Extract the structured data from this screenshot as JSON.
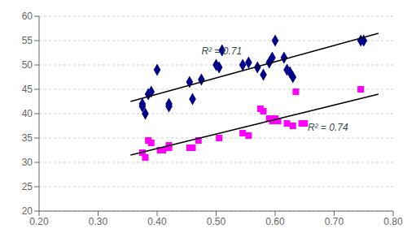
{
  "chart_data": {
    "type": "scatter",
    "xlim": [
      0.2,
      0.8
    ],
    "ylim": [
      20,
      60
    ],
    "xticks": [
      {
        "value": 0.2,
        "label": "0.20"
      },
      {
        "value": 0.3,
        "label": "0.30"
      },
      {
        "value": 0.4,
        "label": "0.40"
      },
      {
        "value": 0.5,
        "label": "0.50"
      },
      {
        "value": 0.6,
        "label": "0.60"
      },
      {
        "value": 0.7,
        "label": "0.70"
      },
      {
        "value": 0.8,
        "label": "0.80"
      }
    ],
    "yticks": [
      20,
      25,
      30,
      35,
      40,
      45,
      50,
      55,
      60
    ],
    "grid": "y",
    "series": [
      {
        "type": "scatter",
        "marker": "diamond",
        "color": "#00008B",
        "x": [
          0.375,
          0.375,
          0.38,
          0.385,
          0.39,
          0.4,
          0.42,
          0.42,
          0.455,
          0.46,
          0.475,
          0.5,
          0.505,
          0.51,
          0.545,
          0.555,
          0.57,
          0.58,
          0.59,
          0.595,
          0.6,
          0.615,
          0.62,
          0.625,
          0.63,
          0.745,
          0.75
        ],
        "values": [
          41.5,
          42.0,
          40.0,
          44.0,
          44.5,
          49.0,
          41.5,
          42.0,
          46.5,
          43.0,
          47.0,
          50.0,
          49.5,
          53.0,
          50.0,
          50.5,
          49.5,
          48.0,
          50.5,
          51.5,
          55.0,
          51.5,
          49.0,
          48.5,
          47.5,
          55.0,
          55.0
        ]
      },
      {
        "type": "scatter",
        "marker": "square",
        "color": "#FF00FF",
        "x": [
          0.375,
          0.38,
          0.385,
          0.39,
          0.405,
          0.41,
          0.42,
          0.42,
          0.455,
          0.46,
          0.47,
          0.505,
          0.545,
          0.555,
          0.575,
          0.58,
          0.59,
          0.595,
          0.6,
          0.605,
          0.62,
          0.63,
          0.635,
          0.645,
          0.65,
          0.745
        ],
        "values": [
          32.0,
          31.0,
          34.5,
          34.0,
          32.5,
          32.5,
          33.0,
          33.5,
          33.0,
          33.0,
          34.5,
          35.0,
          36.0,
          35.5,
          41.0,
          40.5,
          39.0,
          38.5,
          39.0,
          38.5,
          38.0,
          37.5,
          44.5,
          38.0,
          38.0,
          45.0
        ]
      },
      {
        "type": "line",
        "color": "#000000",
        "x": [
          0.355,
          0.775
        ],
        "values": [
          42.5,
          56.5
        ]
      },
      {
        "type": "line",
        "color": "#000000",
        "x": [
          0.355,
          0.775
        ],
        "values": [
          31.5,
          44.0
        ]
      }
    ],
    "annotations": [
      {
        "text": "R² = 0.71",
        "x": 0.475,
        "y": 52.2,
        "color": "#2F4F4F"
      },
      {
        "text": "R² = 0.74",
        "x": 0.655,
        "y": 36.5,
        "color": "#2F4F4F"
      }
    ]
  }
}
